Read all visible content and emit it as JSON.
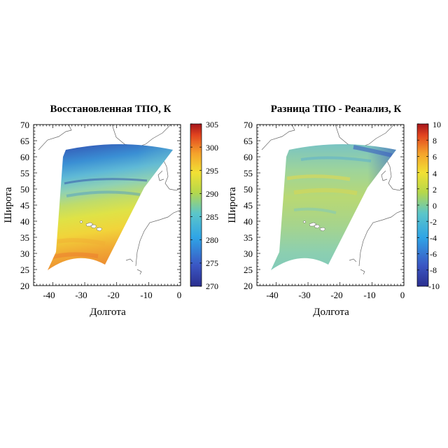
{
  "panels": [
    {
      "title": "Восстановленная ТПО, К",
      "xlabel": "Долгота",
      "ylabel": "Широта",
      "field": "sst",
      "colorbar": {
        "ticks": [
          "305",
          "300",
          "295",
          "290",
          "285",
          "280",
          "275",
          "270"
        ],
        "min": 270,
        "max": 305
      }
    },
    {
      "title": "Разница ТПО - Реанализ, К",
      "xlabel": "Долгота",
      "ylabel": "Широта",
      "field": "diff",
      "colorbar": {
        "ticks": [
          "10",
          "8",
          "6",
          "4",
          "2",
          "0",
          "-2",
          "-4",
          "-6",
          "-8",
          "-10"
        ],
        "min": -10,
        "max": 10
      }
    }
  ],
  "axes": {
    "x_ticks": [
      "-40",
      "-30",
      "-20",
      "-10",
      "0"
    ],
    "y_ticks": [
      "70",
      "65",
      "60",
      "55",
      "50",
      "45",
      "40",
      "35",
      "30",
      "25",
      "20"
    ],
    "xlim": [
      -46,
      0
    ],
    "ylim": [
      20,
      70
    ]
  },
  "colormap": "jet",
  "colors": {
    "land_outline": "#555555",
    "background": "#ffffff"
  }
}
